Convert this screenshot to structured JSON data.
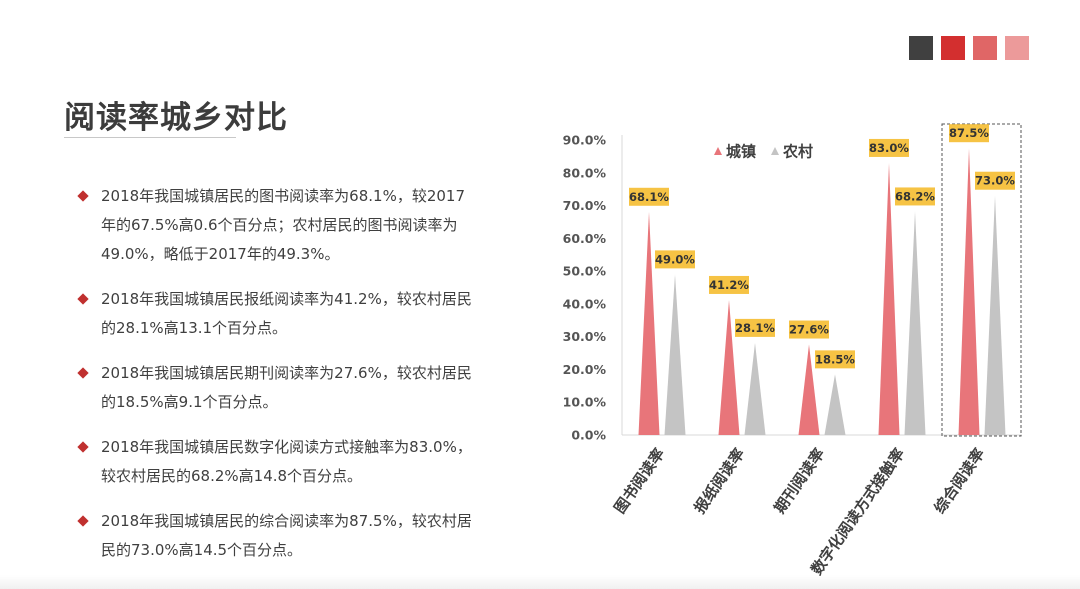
{
  "page": {
    "title": "阅读率城乡对比",
    "swatches": [
      "#404040",
      "#d32f2f",
      "#e06666",
      "#ec9a9a"
    ],
    "bullet_color": "#c0302f"
  },
  "bullets": [
    "2018年我国城镇居民的图书阅读率为68.1%，较2017年的67.5%高0.6个百分点；农村居民的图书阅读率为49.0%，略低于2017年的49.3%。",
    "2018年我国城镇居民报纸阅读率为41.2%，较农村居民的28.1%高13.1个百分点。",
    "2018年我国城镇居民期刊阅读率为27.6%，较农村居民的18.5%高9.1个百分点。",
    "2018年我国城镇居民数字化阅读方式接触率为83.0%，较农村居民的68.2%高14.8个百分点。",
    "2018年我国城镇居民的综合阅读率为87.5%，较农村居民的73.0%高14.5个百分点。"
  ],
  "chart_data": {
    "type": "bar",
    "mark_shape": "triangle",
    "categories": [
      "图书阅读率",
      "报纸阅读率",
      "期刊阅读率",
      "数字化阅读方式接触率",
      "综合阅读率"
    ],
    "series": [
      {
        "name": "城镇",
        "values": [
          68.1,
          41.2,
          27.6,
          83.0,
          87.5
        ],
        "labels": [
          "68.1%",
          "41.2%",
          "27.6%",
          "83.0%",
          "87.5%"
        ],
        "color": "#e8757a"
      },
      {
        "name": "农村",
        "values": [
          49.0,
          28.1,
          18.5,
          68.2,
          73.0
        ],
        "labels": [
          "49.0%",
          "28.1%",
          "18.5%",
          "68.2%",
          "73.0%"
        ],
        "color": "#c4c4c4"
      }
    ],
    "ylim": [
      0,
      90
    ],
    "yticks": [
      "0.0%",
      "10.0%",
      "20.0%",
      "30.0%",
      "40.0%",
      "50.0%",
      "60.0%",
      "70.0%",
      "80.0%",
      "90.0%"
    ],
    "legend_position": "top",
    "highlight_category": "综合阅读率",
    "data_label_bg": "#f6c344",
    "grid": false
  }
}
